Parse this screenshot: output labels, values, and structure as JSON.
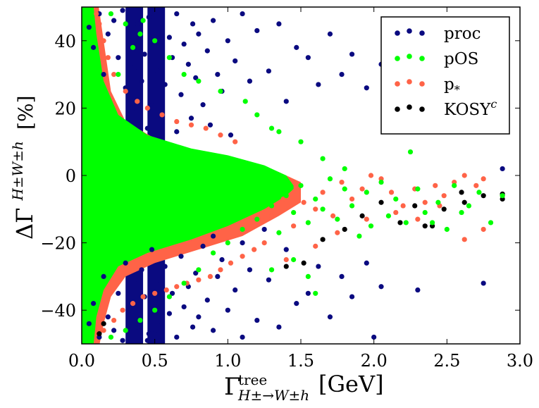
{
  "chart_data": {
    "type": "scatter",
    "title": "",
    "xlabel": {
      "main": "Γ",
      "sup": "tree",
      "sub": "H±→W±h",
      "unit": "[GeV]"
    },
    "ylabel": {
      "main": "ΔΓ",
      "sup": "H±W±h",
      "unit": "[%]"
    },
    "xlim": [
      0.0,
      3.0
    ],
    "ylim": [
      -50,
      50
    ],
    "xticks": [
      "0.0",
      "0.5",
      "1.0",
      "1.5",
      "2.0",
      "2.5",
      "3.0"
    ],
    "yticks": [
      "40",
      "20",
      "0",
      "−20",
      "−40"
    ],
    "legend": {
      "placement": "top-right"
    },
    "series": [
      {
        "name": "proc",
        "label": "proc",
        "label_sup": "",
        "color": "#0a0a80",
        "points": [
          [
            0.05,
            44
          ],
          [
            0.08,
            38
          ],
          [
            0.12,
            48
          ],
          [
            0.15,
            30
          ],
          [
            0.18,
            42
          ],
          [
            0.22,
            46
          ],
          [
            0.25,
            35
          ],
          [
            0.28,
            49
          ],
          [
            0.3,
            26
          ],
          [
            0.33,
            40
          ],
          [
            0.36,
            32
          ],
          [
            0.38,
            45
          ],
          [
            0.41,
            28
          ],
          [
            0.43,
            36
          ],
          [
            0.46,
            47
          ],
          [
            0.48,
            22
          ],
          [
            0.5,
            38
          ],
          [
            0.52,
            31
          ],
          [
            0.55,
            44
          ],
          [
            0.57,
            27
          ],
          [
            0.6,
            41
          ],
          [
            0.62,
            35
          ],
          [
            0.65,
            48
          ],
          [
            0.68,
            24
          ],
          [
            0.7,
            39
          ],
          [
            0.73,
            33
          ],
          [
            0.76,
            45
          ],
          [
            0.78,
            29
          ],
          [
            0.8,
            42
          ],
          [
            0.83,
            21
          ],
          [
            0.86,
            37
          ],
          [
            0.9,
            46
          ],
          [
            0.93,
            30
          ],
          [
            0.96,
            25
          ],
          [
            1.0,
            40
          ],
          [
            1.05,
            34
          ],
          [
            1.1,
            48
          ],
          [
            1.15,
            28
          ],
          [
            1.2,
            43
          ],
          [
            1.28,
            31
          ],
          [
            1.35,
            45
          ],
          [
            1.4,
            22
          ],
          [
            1.47,
            38
          ],
          [
            1.55,
            35
          ],
          [
            1.62,
            27
          ],
          [
            1.7,
            42
          ],
          [
            1.78,
            30
          ],
          [
            1.85,
            36
          ],
          [
            1.95,
            26
          ],
          [
            2.05,
            33
          ],
          [
            2.3,
            24
          ],
          [
            2.5,
            39
          ],
          [
            2.75,
            23
          ],
          [
            0.35,
            20
          ],
          [
            0.45,
            14
          ],
          [
            0.55,
            18
          ],
          [
            0.65,
            13
          ],
          [
            0.75,
            17
          ],
          [
            0.88,
            15
          ],
          [
            1.02,
            12
          ],
          [
            0.05,
            -44
          ],
          [
            0.08,
            -38
          ],
          [
            0.12,
            -48
          ],
          [
            0.15,
            -30
          ],
          [
            0.18,
            -42
          ],
          [
            0.22,
            -46
          ],
          [
            0.25,
            -35
          ],
          [
            0.28,
            -49
          ],
          [
            0.3,
            -26
          ],
          [
            0.33,
            -40
          ],
          [
            0.36,
            -32
          ],
          [
            0.38,
            -45
          ],
          [
            0.41,
            -28
          ],
          [
            0.43,
            -36
          ],
          [
            0.46,
            -47
          ],
          [
            0.48,
            -22
          ],
          [
            0.5,
            -38
          ],
          [
            0.52,
            -31
          ],
          [
            0.55,
            -44
          ],
          [
            0.57,
            -27
          ],
          [
            0.6,
            -41
          ],
          [
            0.62,
            -35
          ],
          [
            0.65,
            -48
          ],
          [
            0.68,
            -24
          ],
          [
            0.7,
            -39
          ],
          [
            0.73,
            -33
          ],
          [
            0.76,
            -45
          ],
          [
            0.78,
            -29
          ],
          [
            0.8,
            -42
          ],
          [
            0.83,
            -21
          ],
          [
            0.86,
            -37
          ],
          [
            0.9,
            -46
          ],
          [
            0.93,
            -30
          ],
          [
            0.96,
            -25
          ],
          [
            1.0,
            -40
          ],
          [
            1.05,
            -34
          ],
          [
            1.1,
            -48
          ],
          [
            1.15,
            -28
          ],
          [
            1.2,
            -43
          ],
          [
            1.28,
            -31
          ],
          [
            1.35,
            -45
          ],
          [
            1.4,
            -22
          ],
          [
            1.47,
            -38
          ],
          [
            1.55,
            -35
          ],
          [
            1.62,
            -27
          ],
          [
            1.7,
            -42
          ],
          [
            1.78,
            -30
          ],
          [
            1.85,
            -36
          ],
          [
            1.95,
            -26
          ],
          [
            2.05,
            -33
          ],
          [
            2.0,
            -48
          ],
          [
            2.3,
            -34
          ],
          [
            2.75,
            -32
          ],
          [
            0.45,
            -49
          ],
          [
            0.5,
            -47
          ],
          [
            0.55,
            -49
          ],
          [
            0.9,
            -18
          ],
          [
            1.1,
            -20
          ],
          [
            1.25,
            -16
          ],
          [
            2.88,
            2
          ]
        ]
      },
      {
        "name": "pOS",
        "label": "pOS",
        "label_sup": "",
        "color": "#00ff00",
        "points": [
          [
            2.88,
            -6
          ],
          [
            2.8,
            -14
          ],
          [
            2.72,
            -5
          ],
          [
            2.65,
            -9
          ],
          [
            2.6,
            -11
          ],
          [
            2.55,
            -3
          ],
          [
            2.5,
            -16
          ],
          [
            2.44,
            -8
          ],
          [
            2.4,
            -14
          ],
          [
            2.35,
            -11
          ],
          [
            2.3,
            -4
          ],
          [
            2.25,
            7
          ],
          [
            2.22,
            -14
          ],
          [
            2.15,
            -7
          ],
          [
            2.1,
            -12
          ],
          [
            2.05,
            -2
          ],
          [
            1.98,
            -15
          ],
          [
            1.95,
            -5
          ],
          [
            1.9,
            -18
          ],
          [
            1.85,
            -9
          ],
          [
            1.8,
            -4
          ],
          [
            1.75,
            -13
          ],
          [
            1.7,
            -1
          ],
          [
            1.65,
            -10
          ],
          [
            1.6,
            -7
          ],
          [
            1.55,
            -14
          ],
          [
            1.5,
            -3
          ],
          [
            1.45,
            -11
          ],
          [
            1.4,
            -6
          ],
          [
            1.35,
            -17
          ],
          [
            1.3,
            -9
          ],
          [
            1.25,
            -2
          ],
          [
            1.2,
            -13
          ],
          [
            1.55,
            -30
          ],
          [
            1.6,
            -35
          ],
          [
            1.45,
            -25
          ],
          [
            1.3,
            -28
          ],
          [
            1.2,
            18
          ],
          [
            1.35,
            13
          ],
          [
            1.5,
            10
          ],
          [
            1.65,
            5
          ],
          [
            1.8,
            2
          ],
          [
            1.3,
            14
          ],
          [
            1.12,
            22
          ],
          [
            0.95,
            25
          ],
          [
            0.8,
            28
          ],
          [
            0.7,
            30
          ],
          [
            0.6,
            35
          ],
          [
            0.5,
            40
          ],
          [
            0.4,
            42
          ],
          [
            0.3,
            45
          ],
          [
            0.2,
            48
          ],
          [
            0.9,
            -23
          ],
          [
            0.8,
            -28
          ],
          [
            0.7,
            -32
          ],
          [
            0.6,
            -36
          ],
          [
            0.5,
            -40
          ],
          [
            0.4,
            -43
          ],
          [
            0.3,
            -46
          ],
          [
            0.2,
            -48
          ],
          [
            1.0,
            -20
          ],
          [
            1.1,
            -16
          ],
          [
            0.42,
            46
          ],
          [
            0.35,
            38
          ],
          [
            0.25,
            30
          ]
        ]
      },
      {
        "name": "p*",
        "label": "p",
        "label_sup": "*",
        "color": "#ff6347",
        "points": [
          [
            2.75,
            -1
          ],
          [
            2.7,
            -3
          ],
          [
            2.62,
            0
          ],
          [
            2.55,
            -2
          ],
          [
            2.48,
            -6
          ],
          [
            2.42,
            -3
          ],
          [
            2.35,
            -8
          ],
          [
            2.28,
            -4
          ],
          [
            2.2,
            -9
          ],
          [
            2.12,
            -5
          ],
          [
            2.05,
            -1
          ],
          [
            1.98,
            0
          ],
          [
            1.92,
            -4
          ],
          [
            1.85,
            -7
          ],
          [
            1.78,
            -2
          ],
          [
            1.72,
            -12
          ],
          [
            1.65,
            -5
          ],
          [
            1.6,
            -10
          ],
          [
            1.52,
            -8
          ],
          [
            1.45,
            -15
          ],
          [
            1.38,
            -7
          ],
          [
            1.3,
            -12
          ],
          [
            1.25,
            -20
          ],
          [
            1.18,
            -22
          ],
          [
            1.1,
            -24
          ],
          [
            1.02,
            -26
          ],
          [
            0.95,
            -28
          ],
          [
            0.88,
            -30
          ],
          [
            0.8,
            -31
          ],
          [
            0.72,
            -32
          ],
          [
            0.65,
            -33
          ],
          [
            0.58,
            -34
          ],
          [
            0.5,
            -35
          ],
          [
            0.42,
            -36
          ],
          [
            0.35,
            -38
          ],
          [
            0.28,
            -40
          ],
          [
            0.22,
            -43
          ],
          [
            0.15,
            -46
          ],
          [
            0.45,
            20
          ],
          [
            0.38,
            22
          ],
          [
            0.3,
            25
          ],
          [
            0.22,
            30
          ],
          [
            0.18,
            35
          ],
          [
            0.15,
            40
          ],
          [
            0.12,
            45
          ],
          [
            0.1,
            48
          ],
          [
            0.55,
            18
          ],
          [
            0.65,
            16
          ],
          [
            0.75,
            15
          ],
          [
            0.85,
            14
          ],
          [
            0.95,
            12
          ],
          [
            1.05,
            10
          ],
          [
            2.88,
            -6
          ],
          [
            2.45,
            -9
          ],
          [
            2.3,
            -13
          ],
          [
            2.15,
            -11
          ],
          [
            1.95,
            -13
          ],
          [
            1.75,
            -17
          ],
          [
            1.6,
            -21
          ],
          [
            1.4,
            -25
          ],
          [
            2.75,
            -16
          ],
          [
            2.62,
            -19
          ]
        ]
      },
      {
        "name": "KOSY^c",
        "label": "KOSY",
        "label_sup": "c",
        "color": "#000000",
        "points": [
          [
            2.88,
            -7
          ],
          [
            2.75,
            -6
          ],
          [
            2.6,
            -5
          ],
          [
            2.48,
            -10
          ],
          [
            2.35,
            -15
          ],
          [
            2.28,
            -9
          ],
          [
            2.18,
            -14
          ],
          [
            2.05,
            -8
          ],
          [
            1.92,
            -12
          ],
          [
            1.8,
            -16
          ],
          [
            1.65,
            -19
          ],
          [
            1.52,
            -26
          ],
          [
            1.4,
            -27
          ],
          [
            0.12,
            -47
          ],
          [
            0.15,
            -44
          ],
          [
            2.88,
            -5.5
          ],
          [
            2.62,
            -8
          ],
          [
            2.4,
            -15
          ]
        ]
      }
    ],
    "dense_cloud": {
      "description_series": "pOS",
      "note": "dense region rendered as filled envelope"
    }
  }
}
